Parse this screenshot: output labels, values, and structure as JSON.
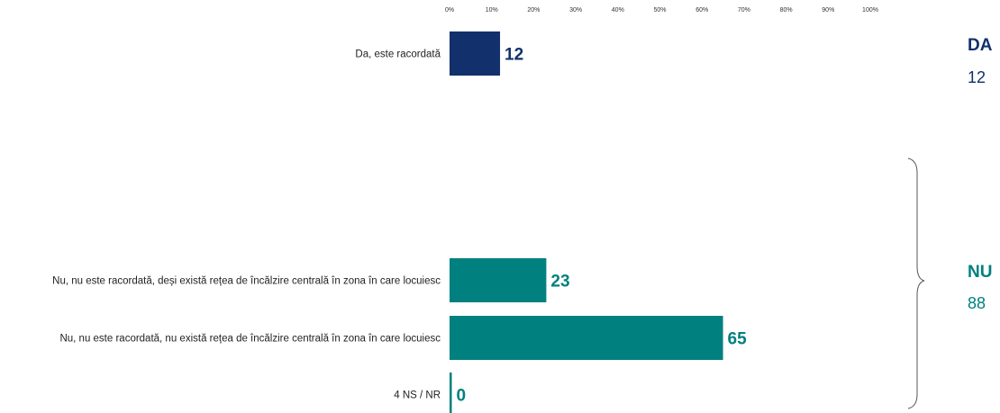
{
  "colors": {
    "da": "#12306B",
    "nu": "#00807F"
  },
  "chart_data": {
    "type": "bar",
    "orientation": "horizontal",
    "title": "",
    "xlim": [
      0,
      100
    ],
    "x_ticks": [
      "0%",
      "10%",
      "20%",
      "30%",
      "40%",
      "50%",
      "60%",
      "70%",
      "80%",
      "90%",
      "100%"
    ],
    "categories": [
      "Da, este racordată",
      "Nu, nu este racordată, deși există rețea de încălzire centrală în zona în care locuiesc",
      "Nu, nu este racordată, nu există rețea de încălzire centrală în zona în care locuiesc",
      "4 NS / NR"
    ],
    "values": [
      12,
      23,
      65,
      0
    ],
    "value_labels": [
      "12",
      "23",
      "65",
      "0"
    ],
    "groups": [
      "DA",
      "NU",
      "NU",
      "NU"
    ]
  },
  "summary": {
    "da": {
      "label": "DA",
      "value": "12"
    },
    "nu": {
      "label": "NU",
      "value": "88"
    }
  }
}
